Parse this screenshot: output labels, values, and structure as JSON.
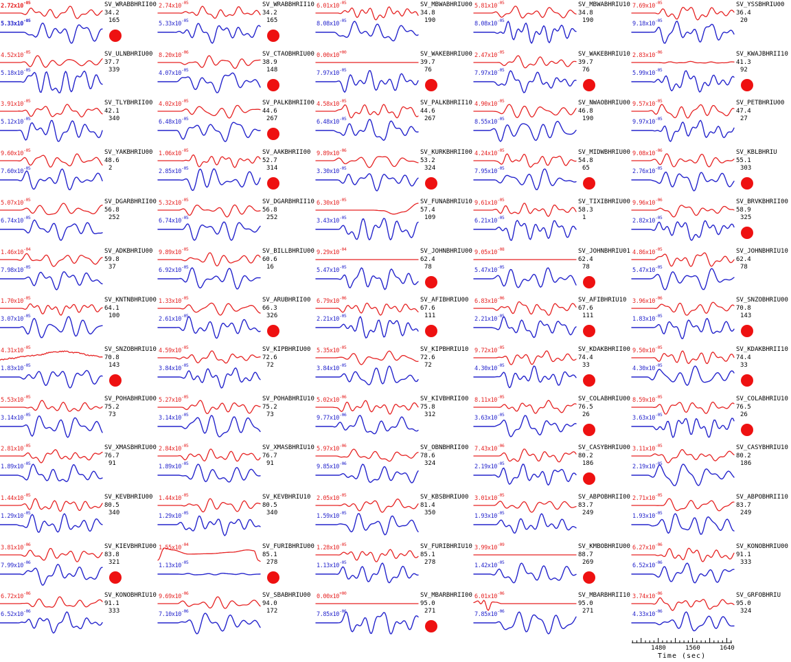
{
  "colors": {
    "data_trace": "#e62222",
    "synthetic_trace": "#2424cc",
    "station_text": "#000000",
    "selection_dot": "#ee1111",
    "background": "#ffffff"
  },
  "axis": {
    "label": "Time (sec)",
    "tick_labels": [
      "1480",
      "1560",
      "1640"
    ],
    "range": [
      1418,
      1652
    ],
    "minor_step": 10,
    "major_step": 40,
    "label_step": 80
  },
  "chart_data": {
    "type": "line",
    "description": "Grid of 65 seismogram pairs (5 columns x 13 rows): red observed-data trace over blue synthetic trace for SV components, each annotated with peak amplitude of red and blue traces, station/channel name, epicentral distance (deg) and azimuth (deg). A red dot marks selected stations. Shared time axis 1480-1640 sec at bottom right.",
    "grid": {
      "columns": 5,
      "rows": 13
    },
    "series_meaning": {
      "red": "observed data amplitude",
      "blue": "synthetic amplitude"
    },
    "x_axis": {
      "label": "Time (sec)",
      "ticks": [
        1480,
        1560,
        1640
      ],
      "range": [
        1418,
        1652
      ]
    },
    "cells": [
      {
        "station": "SV_WRABBHRII00",
        "dist": "34.2",
        "az": "165",
        "amp_red": "2.72x10^-05",
        "amp_blue": "5.33x10^-05",
        "dot": true,
        "hl": true
      },
      {
        "station": "SV_WRABBHRII10",
        "dist": "34.2",
        "az": "165",
        "amp_red": "2.74x10^-05",
        "amp_blue": "5.33x10^-05",
        "dot": true
      },
      {
        "station": "SV_MBWABHRIU00",
        "dist": "34.8",
        "az": "190",
        "amp_red": "6.01x10^-05",
        "amp_blue": "8.08x10^-05",
        "dot": false
      },
      {
        "station": "SV_MBWABHRIU10",
        "dist": "34.8",
        "az": "190",
        "amp_red": "5.81x10^-05",
        "amp_blue": "8.08x10^-05",
        "dot": false
      },
      {
        "station": "SV_YSSBHRIU00",
        "dist": "36.4",
        "az": "20",
        "amp_red": "7.69x10^-05",
        "amp_blue": "9.18x10^-05",
        "dot": false
      },
      {
        "station": "SV_ULNBHRIU00",
        "dist": "37.7",
        "az": "339",
        "amp_red": "4.52x10^-05",
        "amp_blue": "5.18x10^-05",
        "dot": false
      },
      {
        "station": "SV_CTAOBHRIU00",
        "dist": "38.9",
        "az": "148",
        "amp_red": "8.20x10^-06",
        "amp_blue": "4.07x10^-05",
        "dot": true
      },
      {
        "station": "SV_WAKEBHRIU00",
        "dist": "39.7",
        "az": "76",
        "amp_red": "0.00x10^+00",
        "amp_blue": "7.97x10^-05",
        "dot": true,
        "red_shape": "flat"
      },
      {
        "station": "SV_WAKEBHRIU10",
        "dist": "39.7",
        "az": "76",
        "amp_red": "2.47x10^-05",
        "amp_blue": "7.97x10^-05",
        "dot": true
      },
      {
        "station": "SV_KWAJBHRII10",
        "dist": "41.3",
        "az": "92",
        "amp_red": "2.83x10^-06",
        "amp_blue": "5.99x10^-05",
        "dot": true,
        "red_shape": "quiet"
      },
      {
        "station": "SV_TLYBHRII00",
        "dist": "42.1",
        "az": "340",
        "amp_red": "3.91x10^-05",
        "amp_blue": "5.12x10^-05",
        "dot": false
      },
      {
        "station": "SV_PALKBHRII00",
        "dist": "44.6",
        "az": "267",
        "amp_red": "4.02x10^-05",
        "amp_blue": "6.48x10^-05",
        "dot": true
      },
      {
        "station": "SV_PALKBHRII10",
        "dist": "44.6",
        "az": "267",
        "amp_red": "4.58x10^-05",
        "amp_blue": "6.48x10^-05",
        "dot": false
      },
      {
        "station": "SV_NWAOBHRIU00",
        "dist": "46.8",
        "az": "190",
        "amp_red": "4.90x10^-05",
        "amp_blue": "8.55x10^-05",
        "dot": false
      },
      {
        "station": "SV_PETBHRIU00",
        "dist": "47.4",
        "az": "27",
        "amp_red": "9.57x10^-05",
        "amp_blue": "9.97x10^-05",
        "dot": false
      },
      {
        "station": "SV_YAKBHRIU00",
        "dist": "48.6",
        "az": "2",
        "amp_red": "9.60x10^-05",
        "amp_blue": "7.60x10^-05",
        "dot": false
      },
      {
        "station": "SV_AAKBHRII00",
        "dist": "52.7",
        "az": "314",
        "amp_red": "1.06x10^-05",
        "amp_blue": "2.85x10^-05",
        "dot": true
      },
      {
        "station": "SV_KURKBHRII00",
        "dist": "53.2",
        "az": "324",
        "amp_red": "9.89x10^-06",
        "amp_blue": "3.30x10^-05",
        "dot": true
      },
      {
        "station": "SV_MIDWBHRIU00",
        "dist": "54.8",
        "az": "65",
        "amp_red": "4.24x10^-05",
        "amp_blue": "7.95x10^-05",
        "dot": true
      },
      {
        "station": "SV_KBLBHRIU",
        "dist": "55.1",
        "az": "303",
        "amp_red": "9.08x10^-06",
        "amp_blue": "2.76x10^-05",
        "dot": true
      },
      {
        "station": "SV_DGARBHRII00",
        "dist": "56.8",
        "az": "252",
        "amp_red": "5.07x10^-05",
        "amp_blue": "6.74x10^-05",
        "dot": false
      },
      {
        "station": "SV_DGARBHRII10",
        "dist": "56.8",
        "az": "252",
        "amp_red": "5.32x10^-05",
        "amp_blue": "6.74x10^-05",
        "dot": false
      },
      {
        "station": "SV_FUNABHRIU10",
        "dist": "57.4",
        "az": "109",
        "amp_red": "6.30x10^-05",
        "amp_blue": "3.43x10^-05",
        "dot": false,
        "red_shape": "late-dip"
      },
      {
        "station": "SV_TIXIBHRIU00",
        "dist": "58.3",
        "az": "1",
        "amp_red": "9.61x10^-05",
        "amp_blue": "6.21x10^-05",
        "dot": false
      },
      {
        "station": "SV_BRVKBHRII00",
        "dist": "58.9",
        "az": "325",
        "amp_red": "9.96x10^-06",
        "amp_blue": "2.82x10^-05",
        "dot": true
      },
      {
        "station": "SV_ADKBHRIU00",
        "dist": "59.8",
        "az": "37",
        "amp_red": "1.46x10^-04",
        "amp_blue": "7.98x10^-05",
        "dot": false
      },
      {
        "station": "SV_BILLBHRIU00",
        "dist": "60.6",
        "az": "16",
        "amp_red": "9.89x10^-05",
        "amp_blue": "6.92x10^-05",
        "dot": false
      },
      {
        "station": "SV_JOHNBHRIU00",
        "dist": "62.4",
        "az": "78",
        "amp_red": "9.29x10^-04",
        "amp_blue": "5.47x10^-05",
        "dot": true,
        "red_shape": "flat"
      },
      {
        "station": "SV_JOHNBHRIU01",
        "dist": "62.4",
        "az": "78",
        "amp_red": "9.05x10^-08",
        "amp_blue": "5.47x10^-05",
        "dot": true,
        "red_shape": "flat"
      },
      {
        "station": "SV_JOHNBHRIU10",
        "dist": "62.4",
        "az": "78",
        "amp_red": "4.86x10^-05",
        "amp_blue": "5.47x10^-05",
        "dot": false
      },
      {
        "station": "SV_KNTNBHRIU00",
        "dist": "64.1",
        "az": "100",
        "amp_red": "1.70x10^-05",
        "amp_blue": "3.07x10^-05",
        "dot": false
      },
      {
        "station": "SV_ARUBHRII00",
        "dist": "66.3",
        "az": "326",
        "amp_red": "1.33x10^-05",
        "amp_blue": "2.61x10^-05",
        "dot": true
      },
      {
        "station": "SV_AFIBHRIU00",
        "dist": "67.6",
        "az": "111",
        "amp_red": "6.79x10^-06",
        "amp_blue": "2.21x10^-05",
        "dot": true
      },
      {
        "station": "SV_AFIBHRIU10",
        "dist": "67.6",
        "az": "111",
        "amp_red": "6.83x10^-06",
        "amp_blue": "2.21x10^-05",
        "dot": true
      },
      {
        "station": "SV_SNZOBHRIU00",
        "dist": "70.8",
        "az": "143",
        "amp_red": "3.96x10^-06",
        "amp_blue": "1.83x10^-05",
        "dot": true
      },
      {
        "station": "SV_SNZOBHRIU10",
        "dist": "70.8",
        "az": "143",
        "amp_red": "4.31x10^-05",
        "amp_blue": "1.83x10^-05",
        "dot": true,
        "red_shape": "slow"
      },
      {
        "station": "SV_KIPBHRIU00",
        "dist": "72.6",
        "az": "72",
        "amp_red": "4.59x10^-05",
        "amp_blue": "3.84x10^-05",
        "dot": false
      },
      {
        "station": "SV_KIPBHRIU10",
        "dist": "72.6",
        "az": "72",
        "amp_red": "5.35x10^-05",
        "amp_blue": "3.84x10^-05",
        "dot": false
      },
      {
        "station": "SV_KDAKBHRII00",
        "dist": "74.4",
        "az": "33",
        "amp_red": "9.72x10^-05",
        "amp_blue": "4.30x10^-05",
        "dot": true
      },
      {
        "station": "SV_KDAKBHRII10",
        "dist": "74.4",
        "az": "33",
        "amp_red": "9.50x10^-05",
        "amp_blue": "4.30x10^-05",
        "dot": true
      },
      {
        "station": "SV_POHABHRIU00",
        "dist": "75.2",
        "az": "73",
        "amp_red": "5.53x10^-05",
        "amp_blue": "3.14x10^-05",
        "dot": false
      },
      {
        "station": "SV_POHABHRIU10",
        "dist": "75.2",
        "az": "73",
        "amp_red": "5.27x10^-05",
        "amp_blue": "3.14x10^-05",
        "dot": false
      },
      {
        "station": "SV_KIVBHRII00",
        "dist": "75.8",
        "az": "312",
        "amp_red": "5.02x10^-06",
        "amp_blue": "9.77x10^-06",
        "dot": false
      },
      {
        "station": "SV_COLABHRIU00",
        "dist": "76.5",
        "az": "26",
        "amp_red": "8.11x10^-05",
        "amp_blue": "3.63x10^-05",
        "dot": true
      },
      {
        "station": "SV_COLABHRIU10",
        "dist": "76.5",
        "az": "26",
        "amp_red": "8.59x10^-05",
        "amp_blue": "3.63x10^-05",
        "dot": true
      },
      {
        "station": "SV_XMASBHRIU00",
        "dist": "76.7",
        "az": "91",
        "amp_red": "2.81x10^-05",
        "amp_blue": "1.89x10^-05",
        "dot": false
      },
      {
        "station": "SV_XMASBHRIU10",
        "dist": "76.7",
        "az": "91",
        "amp_red": "2.84x10^-05",
        "amp_blue": "1.89x10^-05",
        "dot": false
      },
      {
        "station": "SV_OBNBHRII00",
        "dist": "78.6",
        "az": "324",
        "amp_red": "5.97x10^-06",
        "amp_blue": "9.85x10^-06",
        "dot": false
      },
      {
        "station": "SV_CASYBHRIU00",
        "dist": "80.2",
        "az": "186",
        "amp_red": "7.43x10^-06",
        "amp_blue": "2.19x10^-05",
        "dot": true
      },
      {
        "station": "SV_CASYBHRIU10",
        "dist": "80.2",
        "az": "186",
        "amp_red": "3.11x10^-05",
        "amp_blue": "2.19x10^-05",
        "dot": false
      },
      {
        "station": "SV_KEVBHRIU00",
        "dist": "80.5",
        "az": "340",
        "amp_red": "1.44x10^-05",
        "amp_blue": "1.29x10^-05",
        "dot": false
      },
      {
        "station": "SV_KEVBHRIU10",
        "dist": "80.5",
        "az": "340",
        "amp_red": "1.44x10^-05",
        "amp_blue": "1.29x10^-05",
        "dot": false
      },
      {
        "station": "SV_KBSBHRIU00",
        "dist": "81.4",
        "az": "350",
        "amp_red": "2.05x10^-05",
        "amp_blue": "1.59x10^-05",
        "dot": false
      },
      {
        "station": "SV_ABPOBHRII00",
        "dist": "83.7",
        "az": "249",
        "amp_red": "3.01x10^-05",
        "amp_blue": "1.93x10^-05",
        "dot": false
      },
      {
        "station": "SV_ABPOBHRII10",
        "dist": "83.7",
        "az": "249",
        "amp_red": "2.71x10^-05",
        "amp_blue": "1.93x10^-05",
        "dot": false
      },
      {
        "station": "SV_KIEVBHRIU00",
        "dist": "83.8",
        "az": "321",
        "amp_red": "3.81x10^-06",
        "amp_blue": "7.99x10^-06",
        "dot": true
      },
      {
        "station": "SV_FURIBHRIU00",
        "dist": "85.1",
        "az": "278",
        "amp_red": "1.55x10^-04",
        "amp_blue": "1.13x10^-05",
        "dot": true,
        "red_shape": "dome",
        "blue_shape": "quiet"
      },
      {
        "station": "SV_FURIBHRIU10",
        "dist": "85.1",
        "az": "278",
        "amp_red": "1.28x10^-05",
        "amp_blue": "1.13x10^-05",
        "dot": false
      },
      {
        "station": "SV_KMBOBHRIU00",
        "dist": "88.7",
        "az": "269",
        "amp_red": "3.99x10^-09",
        "amp_blue": "1.42x10^-05",
        "dot": true,
        "red_shape": "flat"
      },
      {
        "station": "SV_KONOBHRIU00",
        "dist": "91.1",
        "az": "333",
        "amp_red": "6.27x10^-06",
        "amp_blue": "6.52x10^-06",
        "dot": false
      },
      {
        "station": "SV_KONOBHRIU10",
        "dist": "91.1",
        "az": "333",
        "amp_red": "6.72x10^-06",
        "amp_blue": "6.52x10^-06",
        "dot": false
      },
      {
        "station": "SV_SBABHRIU00",
        "dist": "94.0",
        "az": "172",
        "amp_red": "9.69x10^-06",
        "amp_blue": "7.10x10^-06",
        "dot": false
      },
      {
        "station": "SV_MBARBHRII00",
        "dist": "95.0",
        "az": "271",
        "amp_red": "0.00x10^+00",
        "amp_blue": "7.85x10^-06",
        "dot": true,
        "red_shape": "flat"
      },
      {
        "station": "SV_MBARBHRII10",
        "dist": "95.0",
        "az": "271",
        "amp_red": "6.01x10^-06",
        "amp_blue": "7.85x10^-06",
        "dot": false,
        "red_shape": "early-only"
      },
      {
        "station": "SV_GRFOBHRIU",
        "dist": "95.0",
        "az": "324",
        "amp_red": "3.74x10^-06",
        "amp_blue": "4.33x10^-06",
        "dot": false
      }
    ]
  }
}
